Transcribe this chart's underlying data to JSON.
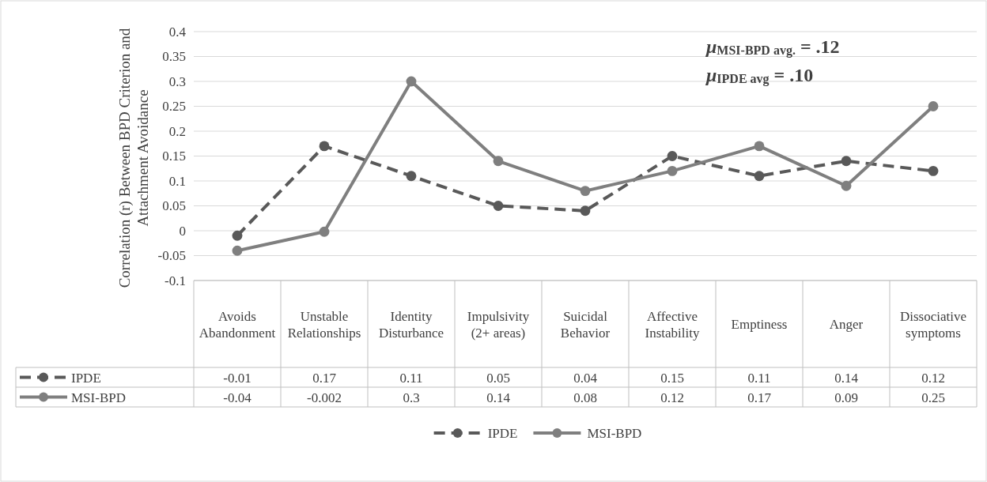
{
  "chart_data": {
    "type": "line",
    "categories": [
      "Avoids Abandonment",
      "Unstable Relationships",
      "Identity Disturbance",
      "Impulsivity (2+ areas)",
      "Suicidal Behavior",
      "Affective Instability",
      "Emptiness",
      "Anger",
      "Dissociative symptoms"
    ],
    "series": [
      {
        "name": "IPDE",
        "color": "#595959",
        "line_style": "dashed",
        "values": [
          -0.01,
          0.17,
          0.11,
          0.05,
          0.04,
          0.15,
          0.11,
          0.14,
          0.12
        ]
      },
      {
        "name": "MSI-BPD",
        "color": "#7f7f7f",
        "line_style": "solid",
        "values": [
          -0.04,
          -0.002,
          0.3,
          0.14,
          0.08,
          0.12,
          0.17,
          0.09,
          0.25
        ]
      }
    ],
    "ylabel": "Correlation (r) Between BPD Criterion and Attachment Avoidance",
    "ylim": [
      -0.1,
      0.4
    ],
    "yticks": [
      -0.1,
      -0.05,
      0,
      0.05,
      0.1,
      0.15,
      0.2,
      0.25,
      0.3,
      0.35,
      0.4
    ],
    "grid": "y",
    "marker": "circle",
    "legend": "bottom",
    "data_labels": true,
    "annotations": [
      "μ$_{MSI-BPD avg.}$ = .12",
      "μ$_{IPDE avg}$ = .10"
    ]
  }
}
